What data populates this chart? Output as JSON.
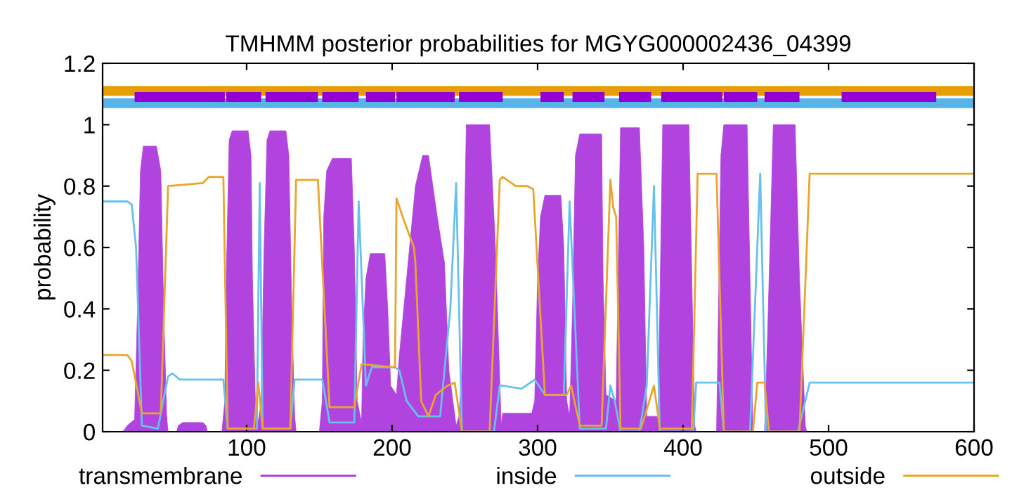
{
  "chart_data": {
    "type": "line",
    "title": "TMHMM posterior probabilities for MGYG000002436_04399",
    "ylabel": "probability",
    "xlim": [
      1,
      600
    ],
    "xticks": [
      100,
      200,
      300,
      400,
      500,
      600
    ],
    "ylim": [
      0,
      1.2
    ],
    "yticks": [
      0,
      0.2,
      0.4,
      0.6,
      0.8,
      1,
      1.2
    ],
    "legend": "bottom",
    "grid": false,
    "series": [
      {
        "color": "#e69f00",
        "x": [
          1,
          600
        ],
        "values": [
          1.11,
          1.11
        ]
      },
      {
        "color": "#56b4e9",
        "x": [
          1,
          600
        ],
        "values": [
          1.07,
          1.07
        ]
      },
      {
        "color": "#9400d3",
        "x": [
          23,
          85,
          null,
          86,
          110,
          null,
          113,
          149,
          null,
          152,
          177,
          null,
          182,
          202,
          null,
          203,
          243,
          null,
          246,
          276,
          null,
          302,
          318,
          null,
          324,
          346,
          null,
          356,
          378,
          null,
          385,
          427,
          null,
          428,
          451,
          null,
          456,
          480,
          null,
          509,
          574
        ],
        "values": [
          1.09,
          1.09,
          null,
          1.09,
          1.09,
          null,
          1.09,
          1.09,
          null,
          1.09,
          1.09,
          null,
          1.09,
          1.09,
          null,
          1.09,
          1.09,
          null,
          1.09,
          1.09,
          null,
          1.09,
          1.09,
          null,
          1.09,
          1.09,
          null,
          1.09,
          1.09,
          null,
          1.09,
          1.09,
          null,
          1.09,
          1.09,
          null,
          1.09,
          1.09,
          null,
          1.09,
          1.09
        ]
      },
      {
        "name": "transmembrane",
        "type": "area",
        "color": "#b143df",
        "x": [
          1,
          15,
          18,
          23,
          25,
          27,
          29,
          38,
          41,
          43,
          45,
          46,
          52,
          53,
          56,
          70,
          72,
          73,
          83,
          85,
          86,
          88,
          90,
          101,
          103,
          104,
          106,
          108,
          110,
          112,
          114,
          116,
          127,
          129,
          131,
          133,
          134,
          150,
          152,
          153,
          155,
          159,
          172,
          174,
          176,
          179,
          180,
          182,
          185,
          195,
          197,
          199,
          203,
          205,
          210,
          216,
          221,
          225,
          231,
          236,
          239,
          244,
          246,
          248,
          251,
          267,
          271,
          275,
          276,
          296,
          298,
          300,
          302,
          305,
          316,
          318,
          320,
          322,
          324,
          326,
          329,
          344,
          345,
          347,
          354,
          355,
          357,
          370,
          373,
          375,
          383,
          384,
          386,
          404,
          406,
          408,
          409,
          423,
          424,
          426,
          428,
          444,
          446,
          448,
          456,
          458,
          462,
          477,
          480,
          484,
          485,
          600
        ],
        "values": [
          0,
          0,
          0.02,
          0.04,
          0.4,
          0.85,
          0.93,
          0.93,
          0.85,
          0.4,
          0.05,
          0,
          0,
          0.02,
          0.03,
          0.03,
          0.02,
          0,
          0,
          0.1,
          0.5,
          0.95,
          0.98,
          0.98,
          0.9,
          0.5,
          0.1,
          0.03,
          0.1,
          0.6,
          0.95,
          0.98,
          0.98,
          0.9,
          0.4,
          0.05,
          0,
          0,
          0.1,
          0.7,
          0.85,
          0.89,
          0.89,
          0.6,
          0.1,
          0.03,
          0.3,
          0.5,
          0.58,
          0.58,
          0.4,
          0.15,
          0.12,
          0.25,
          0.5,
          0.8,
          0.9,
          0.9,
          0.7,
          0.55,
          0.2,
          0.02,
          0.05,
          0.2,
          1,
          1,
          0.6,
          0.02,
          0.06,
          0.06,
          0.1,
          0.5,
          0.7,
          0.77,
          0.77,
          0.6,
          0.1,
          0.05,
          0.4,
          0.9,
          0.97,
          0.97,
          0.5,
          0.12,
          0.1,
          0.4,
          0.99,
          0.99,
          0.6,
          0.05,
          0.05,
          0.4,
          1,
          1,
          0.5,
          0.02,
          0,
          0,
          0.3,
          0.9,
          1,
          1,
          0.5,
          0,
          0,
          0.3,
          1,
          1,
          0.5,
          0.02,
          0,
          0
        ]
      },
      {
        "name": "inside",
        "color": "#67c1ee",
        "x": [
          1,
          18,
          21,
          24,
          28,
          39,
          46,
          49,
          54,
          84,
          87,
          107,
          109,
          111,
          130,
          133,
          152,
          157,
          174,
          177,
          182,
          186,
          202,
          205,
          210,
          218,
          233,
          240,
          244,
          248,
          270,
          274,
          276,
          289,
          298,
          305,
          318,
          322,
          329,
          347,
          350,
          353,
          357,
          370,
          375,
          380,
          384,
          407,
          409,
          425,
          428,
          446,
          453,
          457,
          479,
          487,
          600
        ],
        "values": [
          0.75,
          0.75,
          0.74,
          0.6,
          0.02,
          0.01,
          0.18,
          0.19,
          0.17,
          0.17,
          0.01,
          0.01,
          0.81,
          0.01,
          0.01,
          0.17,
          0.17,
          0.03,
          0.03,
          0.75,
          0.15,
          0.21,
          0.21,
          0.2,
          0.1,
          0.05,
          0.05,
          0.4,
          0.81,
          0,
          0,
          0.15,
          0.15,
          0.14,
          0.17,
          0.12,
          0.12,
          0.75,
          0.01,
          0.01,
          0.15,
          0.1,
          0,
          0,
          0.15,
          0.8,
          0,
          0,
          0.16,
          0.16,
          0,
          0,
          0.84,
          0,
          0,
          0.16,
          0.16
        ]
      },
      {
        "name": "outside",
        "color": "#e9a52c",
        "x": [
          1,
          18,
          21,
          28,
          41,
          46,
          70,
          74,
          84,
          87,
          105,
          108,
          111,
          130,
          134,
          149,
          157,
          174,
          179,
          202,
          203,
          208,
          215,
          216,
          220,
          225,
          230,
          238,
          243,
          248,
          267,
          274,
          276,
          285,
          293,
          297,
          305,
          320,
          323,
          329,
          344,
          350,
          352,
          354,
          357,
          371,
          380,
          384,
          406,
          410,
          423,
          428,
          448,
          451,
          456,
          459,
          480,
          487,
          600
        ],
        "values": [
          0.25,
          0.25,
          0.23,
          0.06,
          0.06,
          0.8,
          0.81,
          0.83,
          0.83,
          0.01,
          0.01,
          0.16,
          0.01,
          0.01,
          0.82,
          0.82,
          0.08,
          0.08,
          0.22,
          0.21,
          0.76,
          0.69,
          0.6,
          0.55,
          0.1,
          0.05,
          0.12,
          0.15,
          0.16,
          0,
          0,
          0.82,
          0.83,
          0.8,
          0.8,
          0.79,
          0.12,
          0.12,
          0.15,
          0.02,
          0.02,
          0.82,
          0.73,
          0.7,
          0.01,
          0.01,
          0.15,
          0.01,
          0.01,
          0.84,
          0.84,
          0,
          0,
          0.16,
          0.16,
          0,
          0,
          0.84,
          0.84
        ]
      }
    ]
  }
}
